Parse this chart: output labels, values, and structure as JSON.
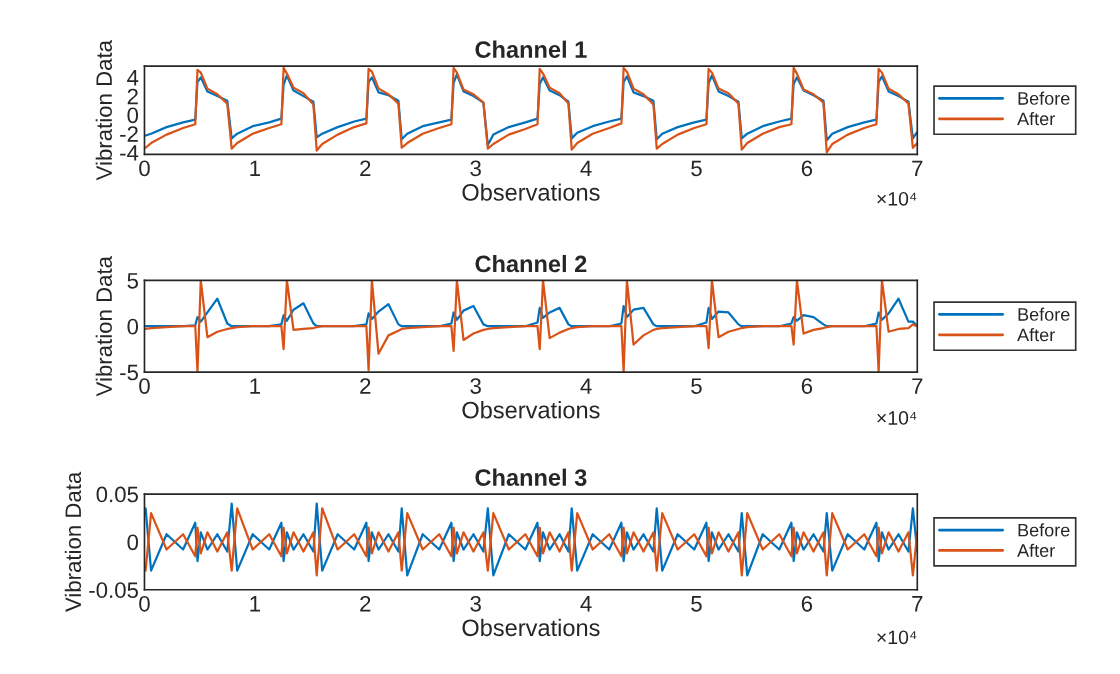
{
  "chart_data": [
    {
      "type": "line",
      "title": "Channel 1",
      "xlabel": "Observations",
      "ylabel": "Vibration Data",
      "annotations": [
        "×10⁴"
      ],
      "x": [
        0.01,
        0.06,
        0.2,
        0.35,
        0.46,
        0.48,
        0.51,
        0.57,
        0.66,
        0.75,
        0.79,
        0.84,
        0.98,
        1.13,
        1.24,
        1.26,
        1.29,
        1.35,
        1.44,
        1.53,
        1.56,
        1.61,
        1.75,
        1.9,
        2.01,
        2.03,
        2.06,
        2.12,
        2.21,
        2.3,
        2.33,
        2.38,
        2.52,
        2.67,
        2.78,
        2.8,
        2.83,
        2.89,
        2.98,
        3.07,
        3.11,
        3.16,
        3.3,
        3.45,
        3.56,
        3.58,
        3.61,
        3.67,
        3.76,
        3.84,
        3.87,
        3.92,
        4.06,
        4.21,
        4.32,
        4.34,
        4.37,
        4.43,
        4.52,
        4.61,
        4.64,
        4.69,
        4.83,
        4.98,
        5.09,
        5.11,
        5.14,
        5.2,
        5.29,
        5.38,
        5.41,
        5.46,
        5.6,
        5.75,
        5.86,
        5.88,
        5.91,
        5.97,
        6.06,
        6.15,
        6.18,
        6.23,
        6.37,
        6.52,
        6.63,
        6.65,
        6.68,
        6.74,
        6.83,
        6.92,
        6.96,
        7.0
      ],
      "series": [
        {
          "name": "Before",
          "color": "#0072bd",
          "values": [
            -2.2,
            -2.0,
            -1.3,
            -0.8,
            -0.5,
            3.5,
            4.0,
            2.5,
            2.0,
            1.5,
            -2.5,
            -2.0,
            -1.2,
            -0.8,
            -0.4,
            3.2,
            4.2,
            2.6,
            2.0,
            1.4,
            -2.4,
            -2.0,
            -1.3,
            -0.7,
            -0.4,
            3.5,
            4.0,
            2.4,
            2.1,
            1.5,
            -2.6,
            -2.0,
            -1.2,
            -0.8,
            -0.5,
            3.4,
            4.3,
            2.5,
            2.0,
            1.3,
            -3.2,
            -2.1,
            -1.3,
            -0.8,
            -0.4,
            3.3,
            4.0,
            2.6,
            2.1,
            1.4,
            -2.5,
            -1.9,
            -1.2,
            -0.7,
            -0.4,
            3.5,
            4.1,
            2.4,
            2.0,
            1.5,
            -2.6,
            -2.0,
            -1.3,
            -0.8,
            -0.5,
            3.4,
            4.2,
            2.5,
            2.0,
            1.4,
            -2.5,
            -2.0,
            -1.2,
            -0.7,
            -0.4,
            3.3,
            4.0,
            2.6,
            2.1,
            1.5,
            -2.7,
            -2.0,
            -1.3,
            -0.8,
            -0.5,
            3.5,
            4.1,
            2.5,
            2.0,
            1.4,
            -2.5,
            -1.8
          ]
        },
        {
          "name": "After",
          "color": "#d95319",
          "values": [
            -3.5,
            -3.0,
            -2.1,
            -1.4,
            -1.0,
            4.8,
            4.5,
            2.8,
            2.2,
            1.2,
            -3.6,
            -3.0,
            -2.0,
            -1.4,
            -1.0,
            5.0,
            4.4,
            2.9,
            2.3,
            1.1,
            -3.8,
            -3.1,
            -2.1,
            -1.3,
            -0.9,
            4.9,
            4.6,
            2.8,
            2.2,
            1.2,
            -3.5,
            -3.0,
            -2.0,
            -1.4,
            -1.0,
            5.0,
            4.5,
            2.7,
            2.2,
            1.3,
            -3.6,
            -3.1,
            -2.1,
            -1.5,
            -1.0,
            4.9,
            4.4,
            2.9,
            2.3,
            1.2,
            -3.7,
            -3.0,
            -2.0,
            -1.4,
            -0.9,
            5.0,
            4.6,
            2.8,
            2.2,
            1.1,
            -3.6,
            -3.1,
            -2.1,
            -1.4,
            -1.0,
            4.9,
            4.5,
            2.8,
            2.3,
            1.2,
            -3.7,
            -3.0,
            -2.0,
            -1.3,
            -1.0,
            5.0,
            4.4,
            2.7,
            2.2,
            1.3,
            -4.0,
            -3.1,
            -2.1,
            -1.4,
            -1.0,
            4.9,
            4.5,
            2.8,
            2.2,
            1.2,
            -3.5,
            -3.0
          ]
        }
      ],
      "xlim": [
        0,
        7
      ],
      "xticks": [
        0,
        1,
        2,
        3,
        4,
        5,
        6,
        7
      ],
      "ylim": [
        -4.2,
        5.2
      ],
      "yticks": [
        -4,
        -2,
        0,
        2,
        4
      ],
      "grid": false,
      "legend": "right"
    },
    {
      "type": "line",
      "title": "Channel 2",
      "xlabel": "Observations",
      "ylabel": "Vibration Data",
      "annotations": [
        "×10⁴"
      ],
      "x": [
        0.01,
        0.06,
        0.2,
        0.35,
        0.46,
        0.48,
        0.51,
        0.57,
        0.66,
        0.75,
        0.79,
        0.84,
        0.98,
        1.13,
        1.24,
        1.26,
        1.29,
        1.35,
        1.44,
        1.53,
        1.56,
        1.61,
        1.75,
        1.9,
        2.01,
        2.03,
        2.06,
        2.12,
        2.21,
        2.3,
        2.33,
        2.38,
        2.52,
        2.67,
        2.78,
        2.8,
        2.83,
        2.89,
        2.98,
        3.07,
        3.11,
        3.16,
        3.3,
        3.45,
        3.56,
        3.58,
        3.61,
        3.67,
        3.76,
        3.84,
        3.87,
        3.92,
        4.06,
        4.21,
        4.32,
        4.34,
        4.37,
        4.43,
        4.52,
        4.61,
        4.64,
        4.69,
        4.83,
        4.98,
        5.09,
        5.11,
        5.14,
        5.2,
        5.29,
        5.38,
        5.41,
        5.46,
        5.6,
        5.75,
        5.86,
        5.88,
        5.91,
        5.97,
        6.06,
        6.15,
        6.18,
        6.23,
        6.37,
        6.52,
        6.63,
        6.65,
        6.68,
        6.74,
        6.83,
        6.92,
        6.96,
        7.0
      ],
      "series": [
        {
          "name": "Before",
          "color": "#0072bd",
          "values": [
            0,
            0,
            0,
            0,
            0.1,
            1.0,
            0.5,
            1.5,
            3.0,
            0.3,
            0,
            0,
            0,
            0,
            0.2,
            1.2,
            0.6,
            1.8,
            2.5,
            0.3,
            0,
            0,
            0,
            0,
            0.2,
            1.4,
            0.8,
            1.6,
            2.4,
            0.2,
            0,
            0,
            0,
            0,
            0.3,
            1.5,
            0.7,
            1.7,
            2.2,
            0.2,
            0,
            0,
            0,
            0,
            0.4,
            2.0,
            0.9,
            1.5,
            2.0,
            0.2,
            0,
            0,
            0,
            0,
            0.3,
            2.2,
            1.0,
            1.8,
            2.0,
            0.2,
            0,
            0,
            0,
            0,
            0.4,
            2.0,
            0.8,
            1.6,
            1.5,
            0.2,
            0,
            0,
            0,
            0,
            0.3,
            1.0,
            0.6,
            1.2,
            1.0,
            0.2,
            0,
            0,
            0,
            0,
            0.3,
            1.5,
            0.7,
            1.4,
            3.0,
            0.5,
            0.5,
            0
          ]
        },
        {
          "name": "After",
          "color": "#d95319",
          "values": [
            -0.3,
            -0.2,
            -0.1,
            0,
            0,
            -5,
            5,
            -1.2,
            -0.6,
            -0.3,
            -0.2,
            -0.1,
            0,
            0,
            0,
            -2.5,
            5,
            -0.4,
            -0.3,
            -0.2,
            -0.1,
            0,
            0,
            0,
            0,
            -4.8,
            5,
            -3.0,
            -1.0,
            -0.5,
            -0.3,
            -0.2,
            -0.1,
            0,
            0,
            -2.7,
            5,
            -1.5,
            -0.8,
            -0.4,
            -0.3,
            -0.2,
            -0.1,
            0,
            0,
            -2.5,
            5,
            -1.3,
            -0.7,
            -0.3,
            -0.2,
            -0.1,
            0,
            0,
            0,
            -5,
            5,
            -2.0,
            -1.0,
            -0.4,
            -0.3,
            -0.2,
            -0.1,
            0,
            0,
            -2.4,
            5,
            -1.2,
            -0.6,
            -0.3,
            -0.2,
            -0.1,
            0,
            0,
            0,
            -2.0,
            5,
            -0.8,
            -0.4,
            -0.2,
            -0.1,
            0,
            0,
            0,
            0,
            -5,
            5,
            -0.6,
            -0.3,
            -0.2,
            0.2,
            0
          ]
        }
      ],
      "xlim": [
        0,
        7
      ],
      "xticks": [
        0,
        1,
        2,
        3,
        4,
        5,
        6,
        7
      ],
      "ylim": [
        -5,
        5
      ],
      "yticks": [
        -5,
        0,
        5
      ],
      "grid": false,
      "legend": "right"
    },
    {
      "type": "line",
      "title": "Channel 3",
      "xlabel": "Observations",
      "ylabel": "Vibration Data",
      "annotations": [
        "×10⁴"
      ],
      "x": [
        0.01,
        0.06,
        0.2,
        0.35,
        0.46,
        0.48,
        0.51,
        0.57,
        0.66,
        0.75,
        0.79,
        0.84,
        0.98,
        1.13,
        1.24,
        1.26,
        1.29,
        1.35,
        1.44,
        1.53,
        1.56,
        1.61,
        1.75,
        1.9,
        2.01,
        2.03,
        2.06,
        2.12,
        2.21,
        2.3,
        2.33,
        2.38,
        2.52,
        2.67,
        2.78,
        2.8,
        2.83,
        2.89,
        2.98,
        3.07,
        3.11,
        3.16,
        3.3,
        3.45,
        3.56,
        3.58,
        3.61,
        3.67,
        3.76,
        3.84,
        3.87,
        3.92,
        4.06,
        4.21,
        4.32,
        4.34,
        4.37,
        4.43,
        4.52,
        4.61,
        4.64,
        4.69,
        4.83,
        4.98,
        5.09,
        5.11,
        5.14,
        5.2,
        5.29,
        5.38,
        5.41,
        5.46,
        5.6,
        5.75,
        5.86,
        5.88,
        5.91,
        5.97,
        6.06,
        6.15,
        6.18,
        6.23,
        6.37,
        6.52,
        6.63,
        6.65,
        6.68,
        6.74,
        6.83,
        6.92,
        6.96,
        7.0
      ],
      "series": [
        {
          "name": "Before",
          "color": "#0072bd",
          "values": [
            0.035,
            -0.03,
            0.008,
            -0.008,
            0.02,
            -0.02,
            0.01,
            -0.008,
            0.008,
            -0.01,
            0.04,
            -0.03,
            0.008,
            -0.008,
            0.02,
            -0.02,
            0.01,
            -0.008,
            0.008,
            -0.01,
            0.04,
            -0.03,
            0.008,
            -0.008,
            0.02,
            -0.02,
            0.01,
            -0.008,
            0.008,
            -0.01,
            0.035,
            -0.035,
            0.008,
            -0.008,
            0.02,
            -0.02,
            0.01,
            -0.008,
            0.008,
            -0.01,
            0.035,
            -0.035,
            0.008,
            -0.008,
            0.02,
            -0.02,
            0.01,
            -0.008,
            0.008,
            -0.01,
            0.035,
            -0.03,
            0.008,
            -0.008,
            0.02,
            -0.02,
            0.01,
            -0.008,
            0.008,
            -0.01,
            0.035,
            -0.03,
            0.008,
            -0.008,
            0.02,
            -0.02,
            0.01,
            -0.008,
            0.008,
            -0.01,
            0.03,
            -0.035,
            0.008,
            -0.008,
            0.02,
            -0.02,
            0.01,
            -0.008,
            0.008,
            -0.01,
            0.03,
            -0.03,
            0.008,
            -0.008,
            0.02,
            -0.02,
            0.01,
            -0.008,
            0.008,
            -0.01,
            0.035,
            -0.01
          ]
        },
        {
          "name": "After",
          "color": "#d95319",
          "values": [
            -0.03,
            0.03,
            -0.008,
            0.008,
            -0.015,
            0.015,
            -0.012,
            0.01,
            -0.01,
            0.01,
            -0.03,
            0.035,
            -0.008,
            0.008,
            -0.015,
            0.015,
            -0.012,
            0.01,
            -0.01,
            0.01,
            -0.035,
            0.035,
            -0.008,
            0.008,
            -0.015,
            0.015,
            -0.012,
            0.01,
            -0.01,
            0.01,
            -0.03,
            0.03,
            -0.008,
            0.008,
            -0.015,
            0.015,
            -0.012,
            0.01,
            -0.01,
            0.01,
            -0.03,
            0.03,
            -0.008,
            0.008,
            -0.015,
            0.015,
            -0.012,
            0.01,
            -0.01,
            0.01,
            -0.03,
            0.03,
            -0.008,
            0.008,
            -0.015,
            0.015,
            -0.012,
            0.01,
            -0.01,
            0.01,
            -0.03,
            0.03,
            -0.008,
            0.008,
            -0.015,
            0.015,
            -0.012,
            0.01,
            -0.01,
            0.01,
            -0.035,
            0.03,
            -0.008,
            0.008,
            -0.015,
            0.015,
            -0.012,
            0.01,
            -0.01,
            0.01,
            -0.035,
            0.03,
            -0.008,
            0.008,
            -0.015,
            0.015,
            -0.012,
            0.01,
            -0.01,
            0.01,
            -0.035,
            0.01
          ]
        }
      ],
      "xlim": [
        0,
        7
      ],
      "xticks": [
        0,
        1,
        2,
        3,
        4,
        5,
        6,
        7
      ],
      "ylim": [
        -0.05,
        0.05
      ],
      "yticks": [
        -0.05,
        0,
        0.05
      ],
      "grid": false,
      "legend": "right"
    }
  ]
}
